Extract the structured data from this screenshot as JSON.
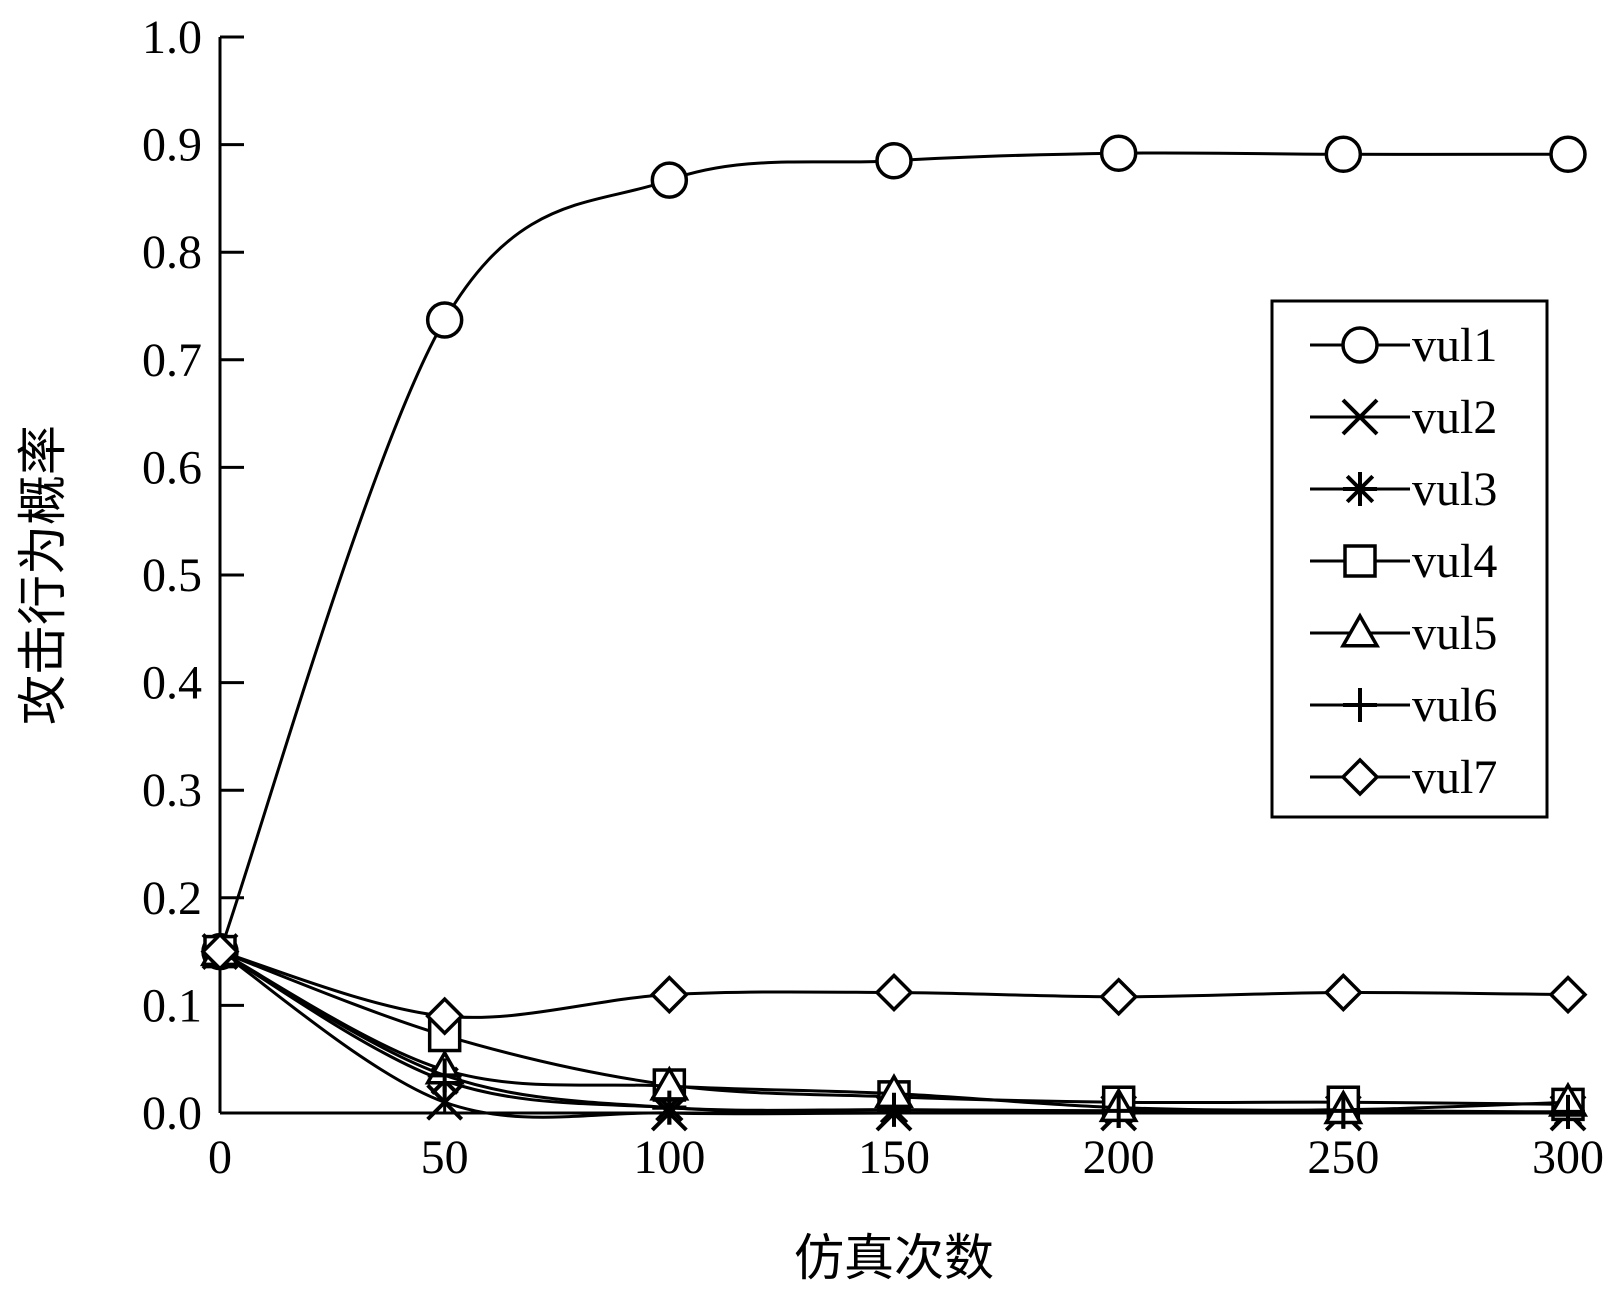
{
  "chart_data": {
    "type": "line",
    "xlabel": "仿真次数",
    "ylabel": "攻击行为概率",
    "xlim": [
      0,
      300
    ],
    "ylim": [
      0,
      1.0
    ],
    "x_ticks": [
      "0",
      "50",
      "100",
      "150",
      "200",
      "250",
      "300"
    ],
    "y_ticks": [
      "0.0",
      "0.1",
      "0.2",
      "0.3",
      "0.4",
      "0.5",
      "0.6",
      "0.7",
      "0.8",
      "0.9",
      "1.0"
    ],
    "x": [
      0,
      50,
      100,
      150,
      200,
      250,
      300
    ],
    "grid": false,
    "legend_position": "right",
    "series": [
      {
        "name": "vul1",
        "marker": "circle",
        "values": [
          0.15,
          0.737,
          0.867,
          0.885,
          0.892,
          0.891,
          0.891
        ]
      },
      {
        "name": "vul2",
        "marker": "x",
        "values": [
          0.15,
          0.01,
          0.0,
          0.0,
          0.0,
          0.0,
          0.0
        ]
      },
      {
        "name": "vul3",
        "marker": "asterisk",
        "values": [
          0.15,
          0.03,
          0.005,
          0.003,
          0.002,
          0.001,
          0.001
        ]
      },
      {
        "name": "vul4",
        "marker": "square",
        "values": [
          0.15,
          0.072,
          0.026,
          0.015,
          0.01,
          0.01,
          0.008
        ]
      },
      {
        "name": "vul5",
        "marker": "triangle",
        "values": [
          0.15,
          0.04,
          0.025,
          0.018,
          0.005,
          0.003,
          0.01
        ]
      },
      {
        "name": "vul6",
        "marker": "plus",
        "values": [
          0.15,
          0.035,
          0.005,
          0.003,
          0.002,
          0.002,
          0.001
        ]
      },
      {
        "name": "vul7",
        "marker": "diamond",
        "values": [
          0.15,
          0.09,
          0.11,
          0.112,
          0.108,
          0.112,
          0.11
        ]
      }
    ]
  }
}
